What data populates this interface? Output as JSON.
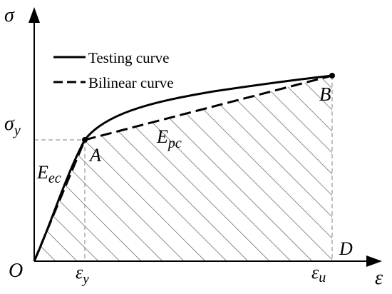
{
  "figure": {
    "axes": {
      "y_symbol": "σ",
      "x_symbol": "ε"
    },
    "ticks": {
      "sigma_y_main": "σ",
      "sigma_y_sub": "y",
      "eps_y_main": "ε",
      "eps_y_sub": "y",
      "eps_u_main": "ε",
      "eps_u_sub": "u"
    },
    "points": {
      "origin": "O",
      "A": "A",
      "B": "B",
      "D": "D"
    },
    "moduli": {
      "eec_main": "E",
      "eec_sub": "ec",
      "epc_main": "E",
      "epc_sub": "pc"
    },
    "legend": {
      "testing": "Testing curve",
      "bilinear": "Bilinear curve"
    },
    "styles": {
      "curve_color": "#000000",
      "guide_color": "#808080",
      "hatch_color": "#808080"
    }
  }
}
